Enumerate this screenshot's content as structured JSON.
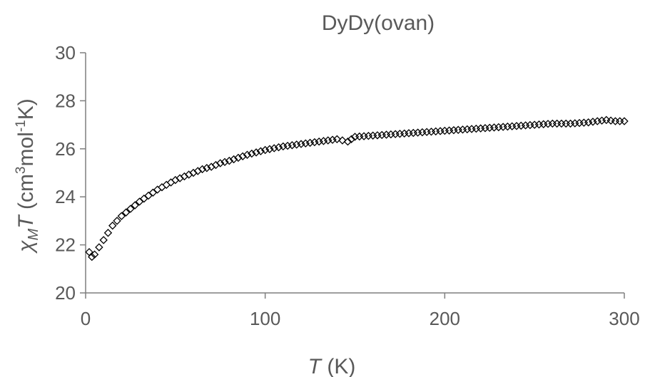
{
  "chart_data": {
    "type": "scatter",
    "title": "DyDy(ovan)",
    "xlabel": {
      "main": "T",
      "unit": " (K)"
    },
    "ylabel": {
      "chi": "χ",
      "sub": "M",
      "T": "T",
      "open": " (cm",
      "sup1": "3",
      "mid": "mol",
      "sup2": "-1",
      "close": "K)"
    },
    "xlim": [
      0,
      300
    ],
    "ylim": [
      20,
      30
    ],
    "xticks": [
      "0",
      "100",
      "200",
      "300"
    ],
    "yticks": [
      "20",
      "22",
      "24",
      "26",
      "28",
      "30"
    ],
    "grid": false,
    "legend": "none",
    "marker": "diamond-open",
    "marker_color": "#000000",
    "x": [
      2.0,
      3.5,
      5.0,
      7.5,
      10.0,
      12.5,
      15.0,
      17.5,
      20.0,
      22.5,
      25.0,
      30.0,
      35.0,
      40.0,
      45.0,
      50.0,
      55.0,
      60.0,
      65.0,
      70.0,
      75.0,
      80.0,
      90.0,
      100.0,
      110.0,
      120.0,
      130.0,
      140.0,
      146.0,
      150.0,
      160.0,
      170.0,
      180.0,
      190.0,
      200.0,
      210.0,
      220.0,
      230.0,
      240.0,
      250.0,
      260.0,
      270.0,
      280.0,
      285.0,
      290.0,
      295.0,
      300.0
    ],
    "y": [
      21.7,
      21.5,
      21.6,
      21.9,
      22.2,
      22.5,
      22.8,
      23.0,
      23.2,
      23.35,
      23.5,
      23.8,
      24.05,
      24.3,
      24.5,
      24.7,
      24.85,
      25.0,
      25.15,
      25.25,
      25.4,
      25.5,
      25.75,
      25.95,
      26.1,
      26.2,
      26.3,
      26.4,
      26.3,
      26.5,
      26.55,
      26.6,
      26.65,
      26.7,
      26.75,
      26.8,
      26.85,
      26.9,
      26.95,
      27.0,
      27.05,
      27.05,
      27.1,
      27.15,
      27.2,
      27.15,
      27.15
    ]
  }
}
